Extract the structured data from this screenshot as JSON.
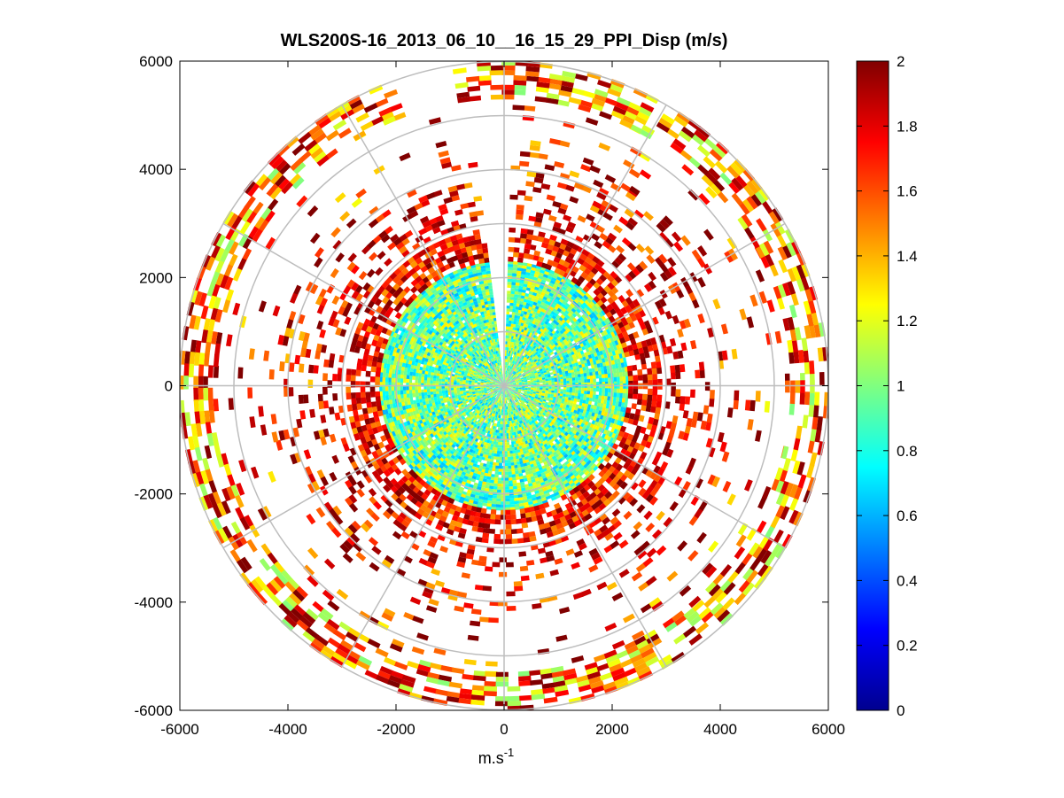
{
  "chart_data": {
    "type": "heatmap",
    "subtype": "polar-ppi",
    "title": "WLS200S-16_2013_06_10__16_15_29_PPI_Disp (m/s)",
    "xlabel": "m.s",
    "xlabel_superscript": "-1",
    "ylabel": "",
    "xlim": [
      -6000,
      6000
    ],
    "ylim": [
      -6000,
      6000
    ],
    "xticks": [
      "-6000",
      "-4000",
      "-2000",
      "0",
      "2000",
      "4000",
      "6000"
    ],
    "yticks": [
      "6000",
      "4000",
      "2000",
      "0",
      "-2000",
      "-4000",
      "-6000"
    ],
    "xtick_values": [
      -6000,
      -4000,
      -2000,
      0,
      2000,
      4000,
      6000
    ],
    "ytick_values": [
      6000,
      4000,
      2000,
      0,
      -2000,
      -4000,
      -6000
    ],
    "colorbar": {
      "colormap": "jet",
      "range": [
        0,
        2
      ],
      "ticks": [
        "2",
        "1.8",
        "1.6",
        "1.4",
        "1.2",
        "1",
        "0.8",
        "0.6",
        "0.4",
        "0.2",
        "0"
      ],
      "tick_values": [
        2,
        1.8,
        1.6,
        1.4,
        1.2,
        1,
        0.8,
        0.6,
        0.4,
        0.2,
        0
      ]
    },
    "polar_grid": {
      "ring_radii": [
        1000,
        2000,
        3000,
        4000,
        5000,
        6000
      ],
      "spoke_angles_deg": [
        0,
        30,
        60,
        90,
        120,
        150,
        180,
        210,
        240,
        270,
        300,
        330
      ]
    },
    "data_rings": [
      {
        "r_inner": 0,
        "r_outer": 2300,
        "coverage": 0.97,
        "mean": 0.95,
        "spread": 0.35,
        "gap_deg": [
          88,
          96
        ]
      },
      {
        "r_inner": 2300,
        "r_outer": 2900,
        "coverage": 0.75,
        "mean": 1.75,
        "spread": 0.3,
        "gap_deg": [
          88,
          96
        ]
      },
      {
        "r_inner": 3000,
        "r_outer": 3400,
        "coverage": 0.35,
        "mean": 1.8,
        "spread": 0.3,
        "gap_deg": [
          88,
          96
        ]
      },
      {
        "r_inner": 3450,
        "r_outer": 4300,
        "coverage": 0.2,
        "mean": 1.75,
        "spread": 0.4,
        "gap_deg": [
          88,
          96
        ]
      },
      {
        "r_inner": 4300,
        "r_outer": 5300,
        "coverage": 0.08,
        "mean": 1.7,
        "spread": 0.5,
        "gap_deg": [
          88,
          96
        ]
      },
      {
        "r_inner": 5300,
        "r_outer": 6000,
        "coverage": 0.55,
        "mean": 1.55,
        "spread": 0.55,
        "gap_deg": [
          100,
          110
        ]
      }
    ]
  }
}
